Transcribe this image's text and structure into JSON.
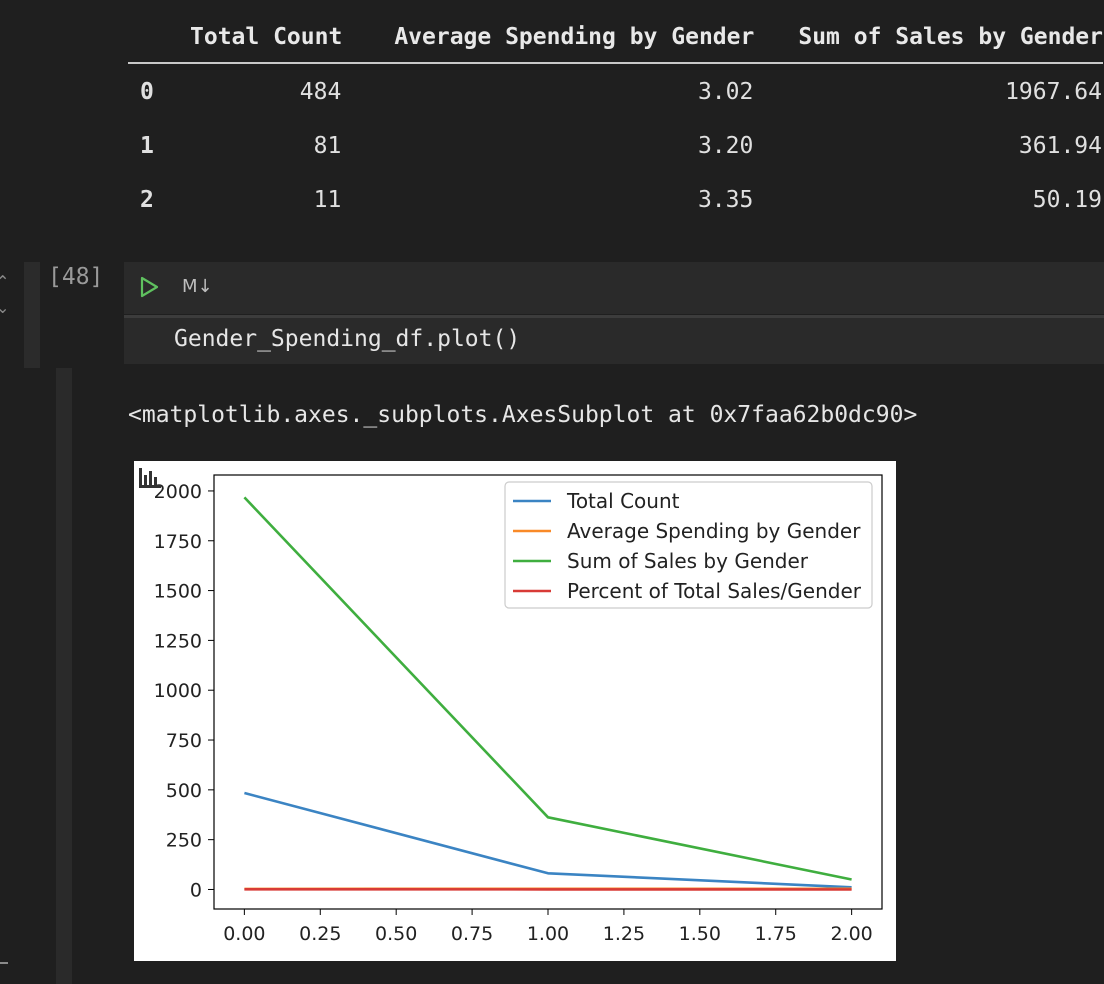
{
  "table": {
    "columns": [
      "Total Count",
      "Average Spending by Gender",
      "Sum of Sales by Gender"
    ],
    "rows": [
      {
        "index": "0",
        "total_count": "484",
        "avg_spending": "3.02",
        "sum_sales": "1967.64"
      },
      {
        "index": "1",
        "total_count": "81",
        "avg_spending": "3.20",
        "sum_sales": "361.94"
      },
      {
        "index": "2",
        "total_count": "11",
        "avg_spending": "3.35",
        "sum_sales": "50.19"
      }
    ]
  },
  "cell": {
    "execution_count": "[48]",
    "cell_type_label": "M↓",
    "code": "Gender_Spending_df.plot()"
  },
  "output": {
    "text": "<matplotlib.axes._subplots.AxesSubplot at 0x7faa62b0dc90>"
  },
  "icons": {
    "run": "play-icon",
    "plot_toolbar": "bar-chart-icon",
    "collapse": "chevron-icon"
  },
  "chart_data": {
    "type": "line",
    "x": [
      0,
      1,
      2
    ],
    "xlim": [
      -0.1,
      2.1
    ],
    "ylim": [
      -98,
      2080
    ],
    "xticks": [
      "0.00",
      "0.25",
      "0.50",
      "0.75",
      "1.00",
      "1.25",
      "1.50",
      "1.75",
      "2.00"
    ],
    "xtick_values": [
      0,
      0.25,
      0.5,
      0.75,
      1,
      1.25,
      1.5,
      1.75,
      2
    ],
    "yticks": [
      "0",
      "250",
      "500",
      "750",
      "1000",
      "1250",
      "1500",
      "1750",
      "2000"
    ],
    "ytick_values": [
      0,
      250,
      500,
      750,
      1000,
      1250,
      1500,
      1750,
      2000
    ],
    "legend_position": "upper right",
    "grid": false,
    "series": [
      {
        "name": "Total Count",
        "color": "#3b84c3",
        "values": [
          484,
          81,
          11
        ]
      },
      {
        "name": "Average Spending by Gender",
        "color": "#f98a28",
        "values": [
          3.02,
          3.2,
          3.35
        ]
      },
      {
        "name": "Sum of Sales by Gender",
        "color": "#3fae3f",
        "values": [
          1967.64,
          361.94,
          50.19
        ]
      },
      {
        "name": "Percent of Total Sales/Gender",
        "color": "#d83b36",
        "values": [
          0.83,
          0.15,
          0.02
        ]
      }
    ]
  }
}
